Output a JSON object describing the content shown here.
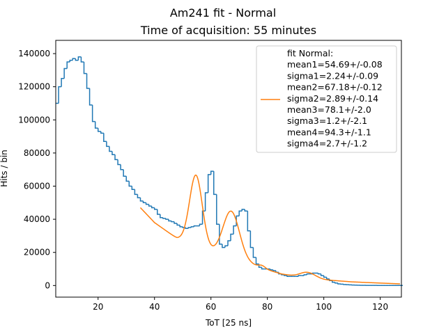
{
  "chart_data": {
    "type": "line",
    "title": "Am241 fit - Normal",
    "subtitle": "Time of acquisition: 55 minutes",
    "xlabel": "ToT [25 ns]",
    "ylabel": "Hits / bin",
    "xlim": [
      5,
      127.5
    ],
    "ylim": [
      -7000,
      148000
    ],
    "xticks": [
      20,
      40,
      60,
      80,
      100,
      120
    ],
    "yticks": [
      0,
      20000,
      40000,
      60000,
      80000,
      100000,
      120000,
      140000
    ],
    "grid": false,
    "legend_position": "top-right",
    "legend_lines": [
      "fit Normal:",
      "mean1=54.69+/-0.08",
      "sigma1=2.24+/-0.09",
      "mean2=67.18+/-0.12",
      "sigma2=2.89+/-0.14",
      "mean3=78.1+/-2.0",
      "sigma3=1.2+/-2.1",
      "mean4=94.3+/-1.1",
      "sigma4=2.7+/-1.2"
    ],
    "series": [
      {
        "kind": "histogram",
        "color": "#1f77b4",
        "bin_start": 5,
        "bin_width": 1,
        "values": [
          110000,
          120000,
          125000,
          131000,
          135000,
          136000,
          137000,
          136000,
          138000,
          135000,
          128000,
          119000,
          109000,
          99000,
          95000,
          93000,
          92000,
          87000,
          84000,
          81000,
          79000,
          76000,
          73000,
          70000,
          66000,
          63000,
          60000,
          58000,
          55000,
          53000,
          51000,
          50000,
          49000,
          48000,
          47000,
          46000,
          43000,
          41000,
          40500,
          40000,
          39000,
          38500,
          37500,
          36500,
          35500,
          35000,
          34500,
          35000,
          35500,
          36000,
          36000,
          37000,
          45000,
          56000,
          67000,
          69000,
          55000,
          37000,
          25000,
          23000,
          24000,
          27000,
          31000,
          36000,
          42000,
          45000,
          46000,
          45000,
          33000,
          23000,
          17000,
          13000,
          11000,
          10000,
          10000,
          10000,
          9500,
          9000,
          8000,
          7000,
          6500,
          6000,
          5500,
          5500,
          5500,
          5500,
          6000,
          6000,
          6500,
          7000,
          7000,
          7500,
          7500,
          7000,
          6000,
          5000,
          4000,
          3000,
          2000,
          1500,
          1000,
          800,
          600,
          500,
          400,
          300,
          250,
          200,
          150,
          120,
          100,
          90,
          80,
          70,
          60,
          55,
          50,
          45,
          40,
          35,
          30,
          25,
          20
        ]
      },
      {
        "kind": "fit",
        "name": "fit Normal:",
        "color": "#ff7f0e",
        "x_range": [
          35,
          127
        ],
        "baseline": [
          [
            35,
            47000
          ],
          [
            40,
            38000
          ],
          [
            45,
            32000
          ],
          [
            48,
            28500
          ],
          [
            50,
            27500
          ],
          [
            55,
            24500
          ],
          [
            60,
            21000
          ],
          [
            65,
            18000
          ],
          [
            70,
            15500
          ],
          [
            75,
            12500
          ],
          [
            80,
            9500
          ],
          [
            85,
            7000
          ],
          [
            90,
            5500
          ],
          [
            95,
            4300
          ],
          [
            100,
            3500
          ],
          [
            110,
            2200
          ],
          [
            127,
            1000
          ]
        ],
        "peaks": [
          {
            "mean": 54.69,
            "sigma": 2.24,
            "amplitude": 42000
          },
          {
            "mean": 67.18,
            "sigma": 2.89,
            "amplitude": 28000
          },
          {
            "mean": 78.1,
            "sigma": 1.2,
            "amplitude": 1500
          },
          {
            "mean": 94.3,
            "sigma": 2.7,
            "amplitude": 3500
          }
        ]
      }
    ]
  }
}
